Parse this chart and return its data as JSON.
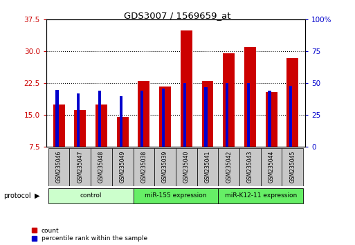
{
  "title": "GDS3007 / 1569659_at",
  "samples": [
    "GSM235046",
    "GSM235047",
    "GSM235048",
    "GSM235049",
    "GSM235038",
    "GSM235039",
    "GSM235040",
    "GSM235041",
    "GSM235042",
    "GSM235043",
    "GSM235044",
    "GSM235045"
  ],
  "count_values": [
    17.5,
    16.2,
    17.5,
    14.5,
    23.0,
    21.8,
    35.0,
    23.0,
    29.5,
    31.0,
    20.5,
    28.5
  ],
  "percentile_values": [
    45,
    42,
    44,
    40,
    44,
    46,
    50,
    47,
    50,
    50,
    44,
    48
  ],
  "ylim_left": [
    7.5,
    37.5
  ],
  "ylim_right": [
    0,
    100
  ],
  "yticks_left": [
    7.5,
    15.0,
    22.5,
    30.0,
    37.5
  ],
  "yticks_right": [
    0,
    25,
    50,
    75,
    100
  ],
  "bar_color_red": "#cc0000",
  "bar_color_blue": "#0000cc",
  "bar_width": 0.55,
  "background_color": "#ffffff",
  "group_labels": [
    "control",
    "miR-155 expression",
    "miR-K12-11 expression"
  ],
  "group_starts": [
    0,
    4,
    8
  ],
  "group_ends": [
    4,
    8,
    12
  ],
  "group_colors": [
    "#ccffcc",
    "#66ee66",
    "#66ee66"
  ]
}
